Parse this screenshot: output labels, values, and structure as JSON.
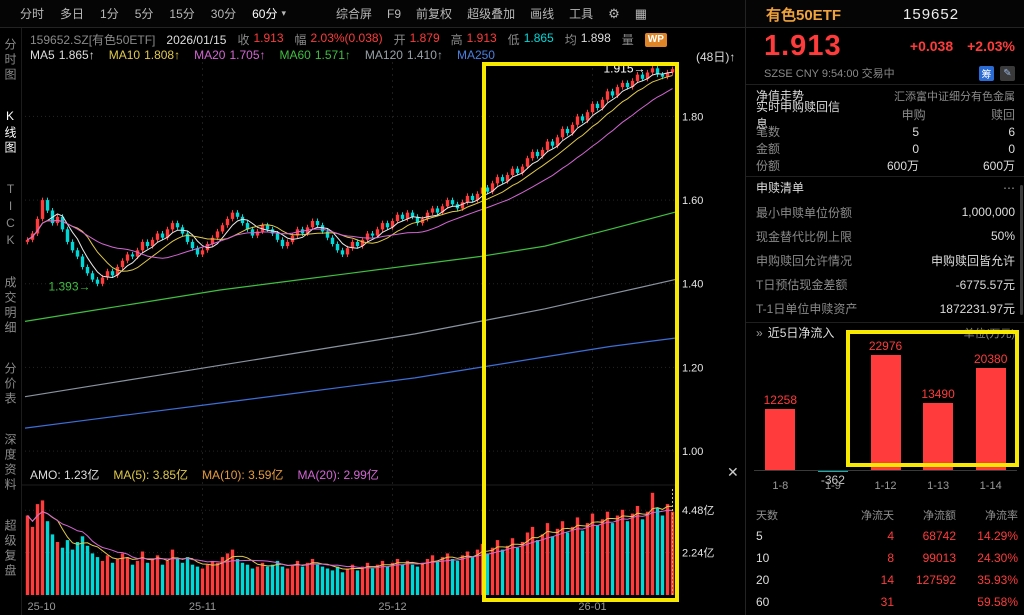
{
  "topbar": {
    "periods": [
      "分时",
      "多日",
      "1分",
      "5分",
      "15分",
      "30分",
      "60分"
    ],
    "caret": "▾",
    "tools": [
      "综合屏",
      "F9",
      "前复权",
      "超级叠加",
      "画线",
      "工具"
    ],
    "gear_icon": "⚙",
    "grid_icon": "▦",
    "stock_name": "有色50ETF",
    "stock_code": "159652"
  },
  "info_row": {
    "symbol": "159652.SZ[有色50ETF]",
    "date": "2026/01/15",
    "close_label": "收",
    "close": "1.913",
    "chg_label": "幅",
    "chg": "2.03%(0.038)",
    "open_label": "开",
    "open": "1.879",
    "high_label": "高",
    "high": "1.913",
    "low_label": "低",
    "low": "1.865",
    "avg_label": "均",
    "avg": "1.898",
    "vol_label": "量",
    "wp_badge": "WP"
  },
  "ma_row": {
    "ma5_label": "MA5",
    "ma5": "1.865↑",
    "ma10_label": "MA10",
    "ma10": "1.808↑",
    "ma20_label": "MA20",
    "ma20": "1.705↑",
    "ma60_label": "MA60",
    "ma60": "1.571↑",
    "ma120_label": "MA120",
    "ma120": "1.410↑",
    "ma250_label": "MA250",
    "range_label": "(48日)↑"
  },
  "sidebar": {
    "items": [
      "分时图",
      "K线图",
      "TICK",
      "成交明细",
      "分价表",
      "深度资料",
      "超级复盘"
    ]
  },
  "chart_data": {
    "type": "candlestick",
    "symbol": "159652.SZ 有色50ETF",
    "period": "60min",
    "open_first": 1.5,
    "closes": [
      1.505,
      1.52,
      1.555,
      1.6,
      1.575,
      1.545,
      1.56,
      1.53,
      1.5,
      1.48,
      1.465,
      1.44,
      1.425,
      1.41,
      1.4,
      1.415,
      1.43,
      1.42,
      1.44,
      1.455,
      1.47,
      1.465,
      1.48,
      1.5,
      1.49,
      1.505,
      1.52,
      1.51,
      1.53,
      1.545,
      1.535,
      1.52,
      1.5,
      1.485,
      1.47,
      1.48,
      1.495,
      1.51,
      1.525,
      1.54,
      1.555,
      1.57,
      1.56,
      1.545,
      1.53,
      1.515,
      1.525,
      1.54,
      1.53,
      1.52,
      1.505,
      1.49,
      1.5,
      1.515,
      1.53,
      1.52,
      1.535,
      1.55,
      1.54,
      1.525,
      1.51,
      1.495,
      1.48,
      1.47,
      1.485,
      1.5,
      1.49,
      1.505,
      1.52,
      1.515,
      1.53,
      1.545,
      1.535,
      1.55,
      1.565,
      1.555,
      1.57,
      1.56,
      1.545,
      1.555,
      1.57,
      1.58,
      1.57,
      1.585,
      1.6,
      1.59,
      1.58,
      1.595,
      1.61,
      1.6,
      1.615,
      1.63,
      1.62,
      1.64,
      1.655,
      1.645,
      1.66,
      1.675,
      1.665,
      1.68,
      1.7,
      1.715,
      1.705,
      1.72,
      1.74,
      1.73,
      1.75,
      1.77,
      1.76,
      1.78,
      1.8,
      1.79,
      1.81,
      1.83,
      1.82,
      1.84,
      1.86,
      1.85,
      1.87,
      1.88,
      1.87,
      1.885,
      1.9,
      1.89,
      1.905,
      1.915,
      1.9,
      1.895,
      1.905,
      1.913
    ],
    "volumes_yi": [
      4.2,
      3.6,
      4.8,
      5.0,
      3.9,
      3.2,
      2.8,
      2.5,
      2.9,
      2.4,
      2.8,
      3.1,
      2.6,
      2.2,
      2.0,
      1.8,
      2.1,
      1.7,
      1.9,
      2.2,
      2.0,
      1.6,
      1.8,
      2.3,
      1.7,
      1.9,
      2.1,
      1.6,
      1.8,
      2.4,
      1.9,
      1.7,
      2.0,
      1.6,
      1.5,
      1.4,
      1.6,
      1.8,
      1.7,
      2.0,
      2.2,
      2.4,
      1.9,
      1.7,
      1.6,
      1.4,
      1.5,
      1.7,
      1.5,
      1.6,
      1.8,
      1.5,
      1.4,
      1.6,
      1.8,
      1.5,
      1.7,
      1.9,
      1.6,
      1.5,
      1.4,
      1.3,
      1.5,
      1.2,
      1.4,
      1.6,
      1.3,
      1.5,
      1.7,
      1.4,
      1.6,
      1.8,
      1.5,
      1.7,
      1.9,
      1.6,
      1.8,
      1.6,
      1.5,
      1.7,
      1.9,
      2.1,
      1.8,
      2.0,
      2.2,
      1.9,
      1.8,
      2.1,
      2.3,
      2.0,
      2.4,
      2.7,
      2.2,
      2.5,
      2.9,
      2.4,
      2.6,
      3.0,
      2.5,
      2.8,
      3.3,
      3.6,
      2.9,
      3.2,
      3.8,
      3.1,
      3.5,
      3.9,
      3.3,
      3.6,
      4.1,
      3.4,
      3.8,
      4.3,
      3.7,
      4.0,
      4.4,
      3.8,
      4.2,
      4.5,
      3.9,
      4.3,
      4.7,
      4.0,
      4.4,
      5.4,
      4.6,
      4.2,
      4.8,
      4.4
    ],
    "grid_prices": [
      1.0,
      1.2,
      1.4,
      1.6,
      1.8
    ],
    "months": [
      {
        "label": "25-10",
        "bar": 0
      },
      {
        "label": "25-11",
        "bar": 35
      },
      {
        "label": "25-12",
        "bar": 73
      },
      {
        "label": "26-01",
        "bar": 113
      }
    ],
    "high_annotation": {
      "text": "1.915→",
      "price": 1.915,
      "bar": 125
    },
    "low_annotation": {
      "text": "1.393→",
      "price": 1.393,
      "bar": 14
    },
    "ma_sparse": [
      {
        "name": "MA60",
        "color": "#3fbf3f",
        "prices": [
          1.31,
          1.335,
          1.36,
          1.385,
          1.405,
          1.425,
          1.445,
          1.465,
          1.49,
          1.53,
          1.571
        ]
      },
      {
        "name": "MA120",
        "color": "#8a93a0",
        "prices": [
          1.13,
          1.155,
          1.18,
          1.205,
          1.23,
          1.255,
          1.28,
          1.31,
          1.34,
          1.375,
          1.41
        ]
      },
      {
        "name": "MA250",
        "color": "#3d6fd8",
        "prices": [
          1.055,
          1.075,
          1.095,
          1.115,
          1.135,
          1.155,
          1.175,
          1.2,
          1.225,
          1.25,
          1.27
        ]
      }
    ],
    "vol_axis": [
      {
        "label": "4.48亿",
        "value": 4.48
      },
      {
        "label": "2.24亿",
        "value": 2.24
      }
    ],
    "vol_max": 5.6,
    "up_color": "#ff3b3b",
    "down_color": "#00d8d8"
  },
  "amo_row": {
    "amo": "AMO: 1.23亿",
    "ma5": "MA(5): 3.85亿",
    "ma10": "MA(10): 3.59亿",
    "ma20": "MA(20): 2.99亿",
    "close_icon": "✕"
  },
  "right_panel": {
    "price": "1.913",
    "change": "+0.038",
    "change_pct": "+2.03%",
    "status": "SZSE CNY 9:54:00 交易中",
    "badge1": "筹",
    "badge2": "✎",
    "nav_label": "净值走势",
    "nav_value": "汇添富中证细分有色金属",
    "rt_title": "实时申购赎回信息",
    "col_buy": "申购",
    "col_sell": "赎回",
    "rows": [
      {
        "label": "笔数",
        "buy": "5",
        "sell": "6"
      },
      {
        "label": "金额",
        "buy": "0",
        "sell": "0"
      },
      {
        "label": "份额",
        "buy": "600万",
        "sell": "600万"
      }
    ],
    "list_title": "申赎清单",
    "list_more": "⋯",
    "kv": [
      {
        "label": "最小申赎单位份额",
        "value": "1,000,000"
      },
      {
        "label": "现金替代比例上限",
        "value": "50%"
      },
      {
        "label": "申购赎回允许情况",
        "value": "申购赎回皆允许"
      },
      {
        "label": "T日预估现金差额",
        "value": "-6775.57元"
      },
      {
        "label": "T-1日单位申赎资产",
        "value": "1872231.97元"
      }
    ],
    "flow_chevron": "»",
    "flow_title": "近5日净流入",
    "flow_unit": "单位(万元)",
    "flows": {
      "type": "bar",
      "categories": [
        "1-8",
        "1-9",
        "1-12",
        "1-13",
        "1-14"
      ],
      "values": [
        12258,
        -362,
        22976,
        13490,
        20380
      ],
      "pos_color": "#ff3b3b",
      "neg_color": "#00b8b8"
    },
    "table": {
      "headers": [
        "天数",
        "净流天",
        "净流额",
        "净流率"
      ],
      "rows": [
        [
          "5",
          "4",
          "68742",
          "14.29%"
        ],
        [
          "10",
          "8",
          "99013",
          "24.30%"
        ],
        [
          "20",
          "14",
          "127592",
          "35.93%"
        ],
        [
          "60",
          "31",
          "",
          "59.58%"
        ]
      ]
    }
  }
}
